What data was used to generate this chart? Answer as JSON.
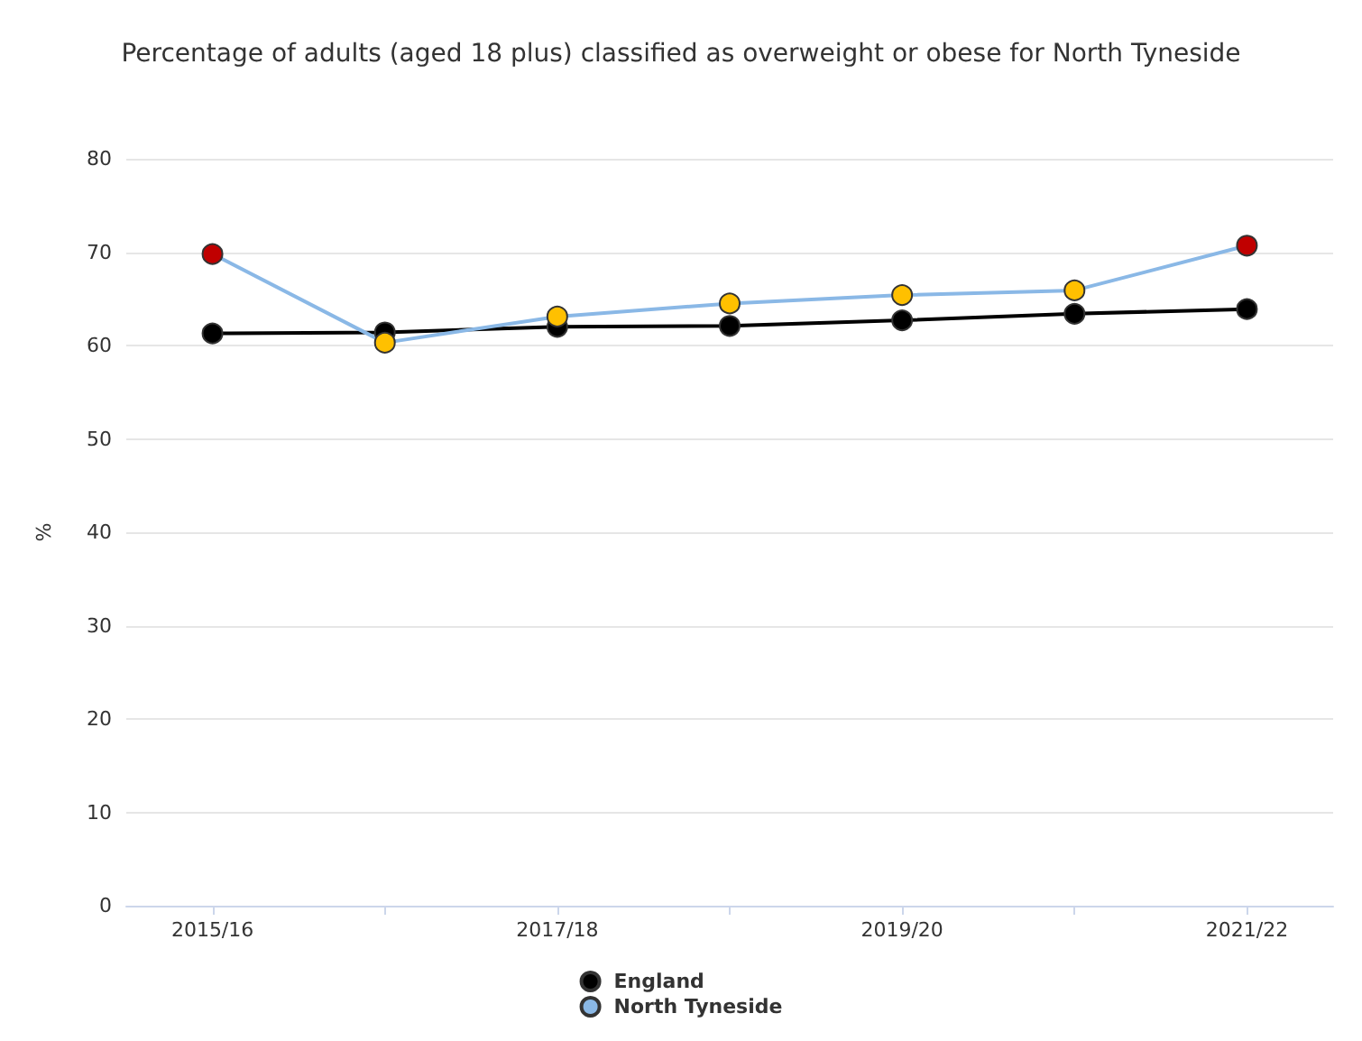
{
  "chart_data": {
    "type": "line",
    "title": "Percentage of adults (aged 18 plus) classified as overweight or obese for North Tyneside",
    "ylabel": "%",
    "categories": [
      "2015/16",
      null,
      "2017/18",
      null,
      "2019/20",
      null,
      "2021/22"
    ],
    "series": [
      {
        "name": "England",
        "color": "#000000",
        "values": [
          61.3,
          61.4,
          62.0,
          62.1,
          62.7,
          63.4,
          63.9
        ]
      },
      {
        "name": "North Tyneside",
        "color": "#8ab8e6",
        "colors": [
          "#c00000",
          "#ffc000",
          "#ffc000",
          "#ffc000",
          "#ffc000",
          "#ffc000",
          "#c00000"
        ],
        "values": [
          69.8,
          60.3,
          63.1,
          64.5,
          65.4,
          65.9,
          70.7
        ]
      }
    ],
    "ylim": [
      0,
      80
    ],
    "yticks": [
      0,
      10,
      20,
      30,
      40,
      50,
      60,
      70,
      80
    ],
    "grid": "y",
    "legend": "bottom",
    "marker": "circle",
    "line_style": "solid"
  }
}
